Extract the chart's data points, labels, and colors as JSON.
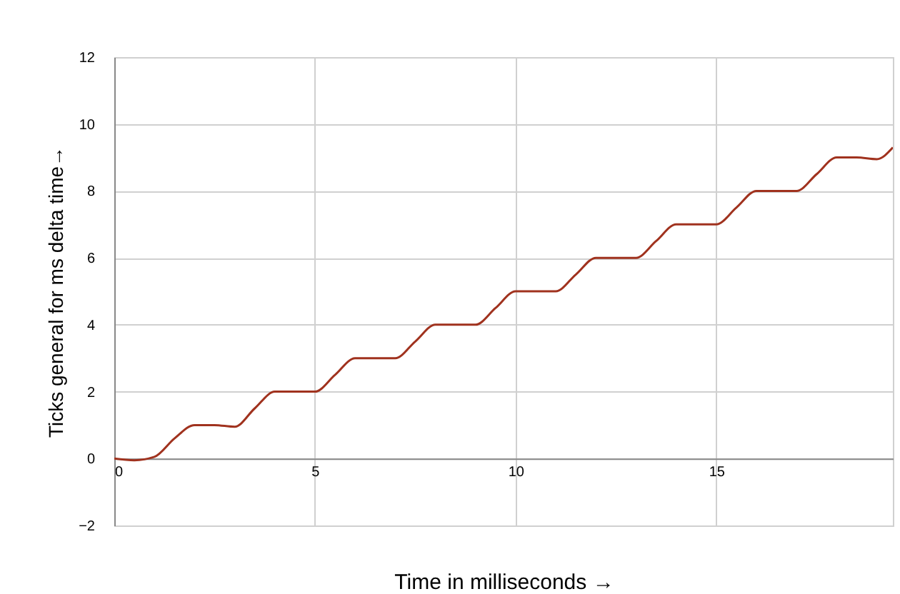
{
  "chart_data": {
    "type": "line",
    "xlabel": "Time in milliseconds  →",
    "ylabel": "Ticks general for ms delta time→",
    "x": [
      0,
      0.5,
      1,
      1.5,
      2,
      2.5,
      3,
      3.5,
      4,
      4.5,
      5,
      5.5,
      6,
      6.5,
      7,
      7.5,
      8,
      8.5,
      9,
      9.5,
      10,
      10.5,
      11,
      11.5,
      12,
      12.5,
      13,
      13.5,
      14,
      14.5,
      15,
      15.5,
      16,
      16.5,
      17,
      17.5,
      18,
      18.5,
      19,
      19.4
    ],
    "series": [
      {
        "color": "#a0321e",
        "values": [
          0,
          -0.05,
          0.05,
          0.6,
          1,
          1,
          0.95,
          1.5,
          2,
          2,
          2,
          2.5,
          3,
          3,
          3,
          3.5,
          4,
          4,
          4,
          4.5,
          5,
          5,
          5,
          5.5,
          6,
          6,
          6,
          6.5,
          7,
          7,
          7,
          7.5,
          8,
          8,
          8,
          8.5,
          9,
          9,
          8.95,
          9.3
        ]
      }
    ],
    "xlim": [
      0,
      19.4
    ],
    "xticks": [
      0,
      5,
      10,
      15
    ],
    "ylim": [
      -2,
      12
    ],
    "yticks": [
      -2,
      0,
      2,
      4,
      6,
      8,
      10,
      12
    ],
    "grid": true,
    "marker": "none",
    "line_style": "solid"
  }
}
